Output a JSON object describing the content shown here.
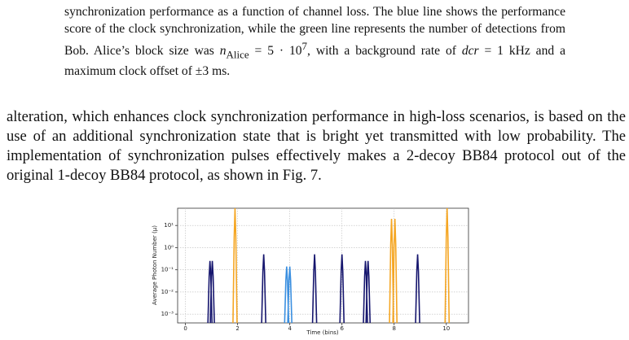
{
  "caption": {
    "text1": "synchronization performance as a function of channel loss. The blue line shows the performance score of the clock synchronization, while the green line represents the number of detections from Bob. Alice’s block size was ",
    "var_n": "n",
    "sub_alice": "Alice",
    "eq1": " = 5 · 10",
    "sup_7": "7",
    "text2": ", with a background rate of ",
    "var_dcr": "dcr",
    "text3": " = 1 kHz and a maximum clock offset of ±3 ms."
  },
  "paragraph": "alteration, which enhances clock synchronization performance in high-loss scenarios, is based on the use of an additional synchronization state that is bright yet transmitted with low probability. The implementation of synchronization pulses effectively makes a 2-decoy BB84 protocol out of the original 1-decoy BB84 protocol, as shown in Fig. 7.",
  "chart_data": {
    "type": "pulse",
    "y_label": "Average Photon Number (μ)",
    "x_label": "Time (bins)",
    "log_y": true,
    "grid": true,
    "xlim": [
      -0.3,
      10.85
    ],
    "xticks": [
      0,
      2,
      4,
      6,
      8,
      10
    ],
    "ylim": [
      0.0004,
      60
    ],
    "yticks": [
      {
        "value": 0.001,
        "label": "10⁻³"
      },
      {
        "value": 0.01,
        "label": "10⁻²"
      },
      {
        "value": 0.1,
        "label": "10⁻¹"
      },
      {
        "value": 1,
        "label": "10⁰"
      },
      {
        "value": 10,
        "label": "10¹"
      }
    ],
    "series": [
      {
        "color": "#16166e",
        "x": [
          0.94,
          1.03,
          3,
          4.95,
          6,
          6.9,
          7.0,
          8.9
        ],
        "values": [
          0.25,
          0.25,
          0.5,
          0.5,
          0.5,
          0.25,
          0.25,
          0.5
        ]
      },
      {
        "color": "#3a8fe0",
        "x": [
          3.88,
          4.0
        ],
        "values": [
          0.14,
          0.14
        ]
      },
      {
        "color": "#f5a623",
        "x": [
          1.9,
          7.9,
          8.03,
          10.03
        ],
        "values": [
          60,
          20,
          20,
          60
        ]
      }
    ]
  }
}
